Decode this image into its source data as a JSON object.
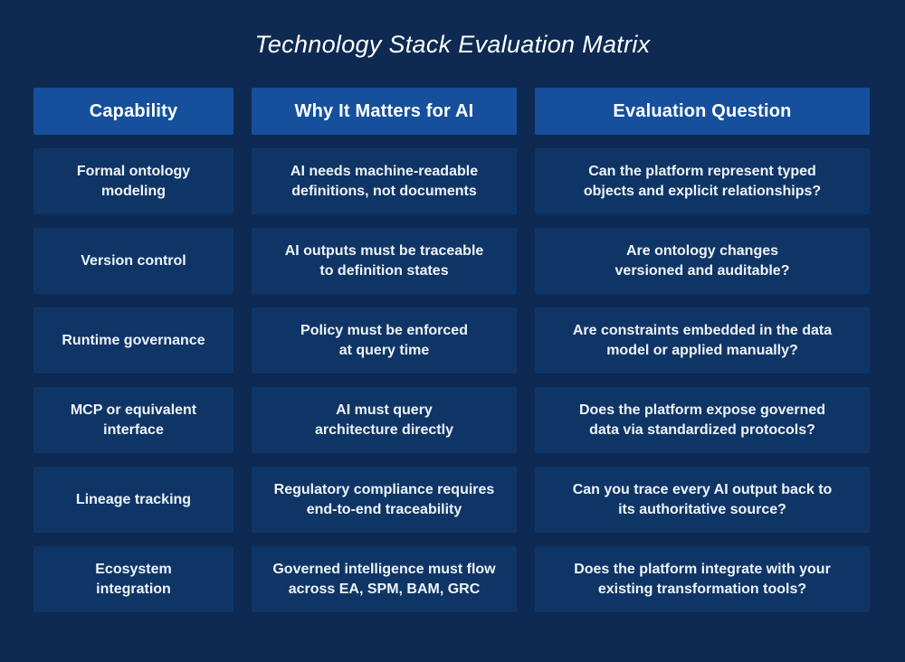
{
  "title": "Technology Stack Evaluation Matrix",
  "colors": {
    "background": "#0e2a52",
    "header_cell": "#16509c",
    "body_cell": "#0f3566",
    "header_text": "#ffffff",
    "body_text": "#eef3f9"
  },
  "table": {
    "headers": [
      "Capability",
      "Why It Matters for AI",
      "Evaluation Question"
    ],
    "rows": [
      {
        "capability": "Formal ontology\nmodeling",
        "why": "AI needs machine-readable\ndefinitions, not documents",
        "question": "Can the platform represent typed\nobjects and explicit relationships?"
      },
      {
        "capability": "Version control",
        "why": "AI outputs must be traceable\nto definition states",
        "question": "Are ontology changes\nversioned and auditable?"
      },
      {
        "capability": "Runtime governance",
        "why": "Policy must be enforced\nat query time",
        "question": "Are constraints embedded in the data\nmodel or applied manually?"
      },
      {
        "capability": "MCP or equivalent\ninterface",
        "why": "AI must query\narchitecture directly",
        "question": "Does the platform expose governed\ndata via standardized protocols?"
      },
      {
        "capability": "Lineage tracking",
        "why": "Regulatory compliance requires\nend-to-end traceability",
        "question": "Can you trace every AI output back to\nits authoritative source?"
      },
      {
        "capability": "Ecosystem\nintegration",
        "why": "Governed intelligence must flow\nacross EA, SPM, BAM, GRC",
        "question": "Does the platform integrate with your\nexisting transformation tools?"
      }
    ]
  }
}
